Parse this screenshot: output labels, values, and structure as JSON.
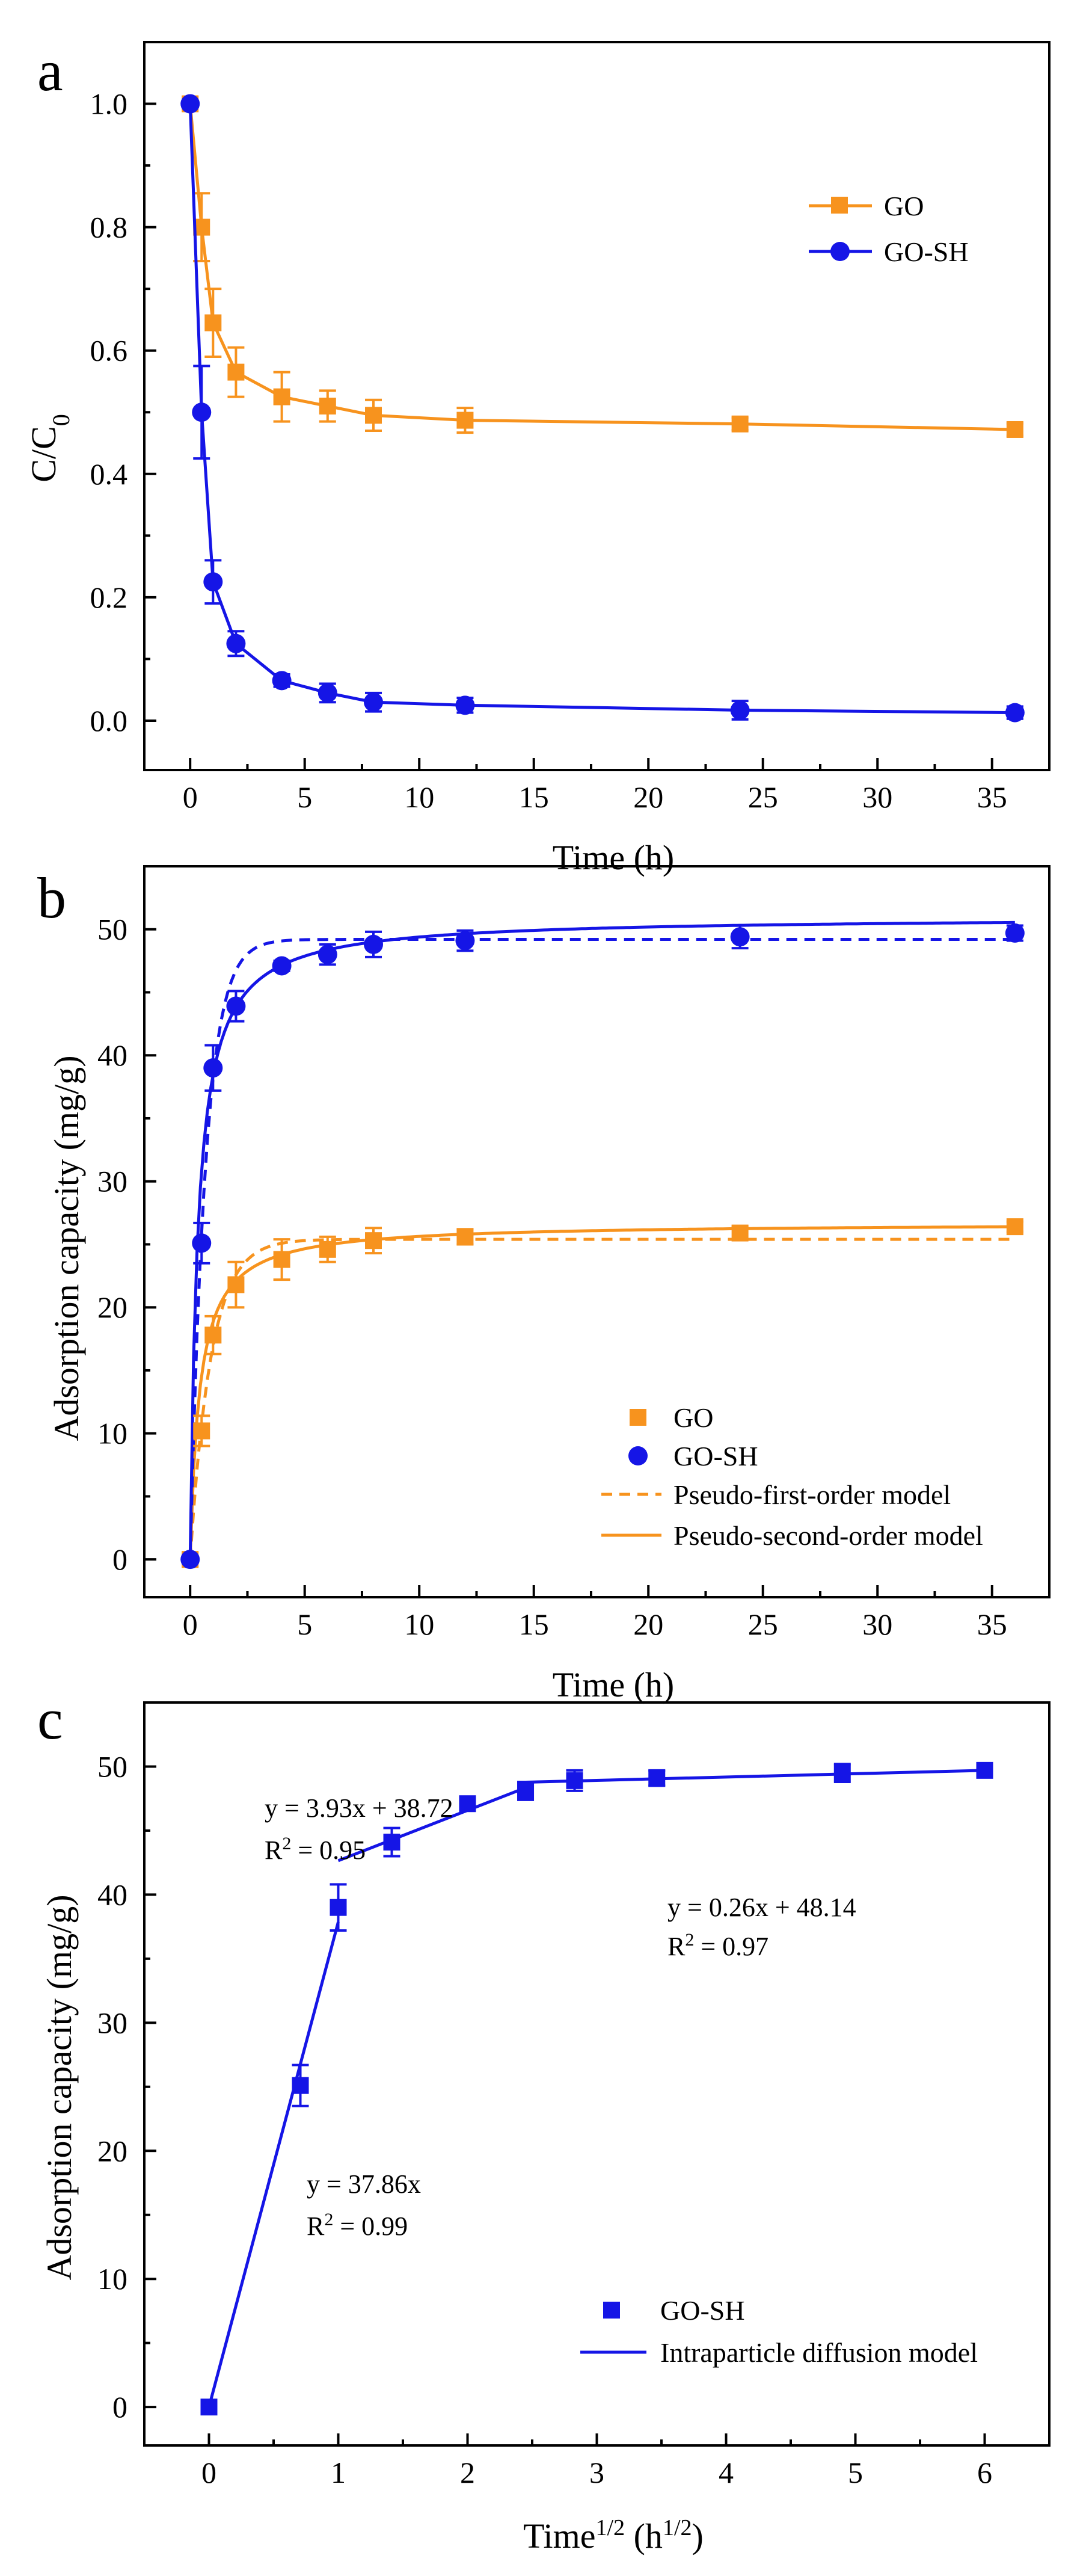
{
  "colors": {
    "orange": "#F7931E",
    "blue": "#1515E6",
    "axis": "#000000"
  },
  "chart_data": [
    {
      "panel": "a",
      "type": "line",
      "xlabel": "Time (h)",
      "ylabel_main": "C/C",
      "ylabel_sub": "0",
      "xlim": [
        -2,
        37.5
      ],
      "ylim": [
        -0.08,
        1.1
      ],
      "xticks": [
        0,
        5,
        10,
        15,
        20,
        25,
        30,
        35
      ],
      "yticks": [
        0.0,
        0.2,
        0.4,
        0.6,
        0.8,
        1.0
      ],
      "ytick_labels": [
        "0.0",
        "0.2",
        "0.4",
        "0.6",
        "0.8",
        "1.0"
      ],
      "legend_position": "top-right",
      "series": [
        {
          "name": "GO",
          "color": "orange",
          "marker": "square",
          "line": "solid",
          "x": [
            0,
            0.5,
            1,
            2,
            4,
            6,
            8,
            12,
            24,
            36
          ],
          "y": [
            1.0,
            0.8,
            0.645,
            0.565,
            0.525,
            0.51,
            0.495,
            0.487,
            0.481,
            0.472
          ],
          "err": [
            0,
            0.055,
            0.055,
            0.04,
            0.04,
            0.025,
            0.025,
            0.02,
            0.01,
            0.01
          ]
        },
        {
          "name": "GO-SH",
          "color": "blue",
          "marker": "circle",
          "line": "solid",
          "x": [
            0,
            0.5,
            1,
            2,
            4,
            6,
            8,
            12,
            24,
            36
          ],
          "y": [
            1.0,
            0.5,
            0.225,
            0.125,
            0.065,
            0.045,
            0.03,
            0.025,
            0.017,
            0.013
          ],
          "err": [
            0,
            0.075,
            0.035,
            0.02,
            0.01,
            0.015,
            0.015,
            0.012,
            0.015,
            0.01
          ]
        }
      ]
    },
    {
      "panel": "b",
      "type": "scatter",
      "xlabel": "Time (h)",
      "ylabel": "Adsorption capacity (mg/g)",
      "xlim": [
        -2,
        37.5
      ],
      "ylim": [
        -3,
        55
      ],
      "xticks": [
        0,
        5,
        10,
        15,
        20,
        25,
        30,
        35
      ],
      "yticks": [
        0,
        10,
        20,
        30,
        40,
        50
      ],
      "legend_position": "bottom-right",
      "series": [
        {
          "name": "GO",
          "color": "orange",
          "marker": "square",
          "x": [
            0,
            0.5,
            1,
            2,
            4,
            6,
            8,
            12,
            24,
            36
          ],
          "y": [
            0,
            10.2,
            17.8,
            21.8,
            23.8,
            24.6,
            25.3,
            25.6,
            25.9,
            26.4
          ],
          "err": [
            0,
            1.2,
            1.5,
            1.8,
            1.6,
            1.0,
            1.0,
            0.6,
            0.5,
            0.4
          ],
          "pfo": {
            "qe": 25.4,
            "k1": 1.1
          },
          "pso": {
            "qe": 26.7,
            "k2": 0.09
          }
        },
        {
          "name": "GO-SH",
          "color": "blue",
          "marker": "circle",
          "x": [
            0,
            0.5,
            1,
            2,
            4,
            6,
            8,
            12,
            24,
            36
          ],
          "y": [
            0,
            25.1,
            39.0,
            43.9,
            47.1,
            48.0,
            48.8,
            49.1,
            49.4,
            49.7
          ],
          "err": [
            0,
            1.6,
            1.8,
            1.2,
            0.4,
            0.8,
            1.0,
            0.8,
            0.9,
            0.6
          ],
          "pfo": {
            "qe": 49.2,
            "k1": 1.5
          },
          "pso": {
            "qe": 51.0,
            "k2": 0.06
          }
        }
      ],
      "legend": [
        {
          "label": "GO",
          "kind": "marker-square",
          "color": "orange"
        },
        {
          "label": "GO-SH",
          "kind": "marker-circle",
          "color": "blue"
        },
        {
          "label": "Pseudo-first-order model",
          "kind": "dashed",
          "color": "orange"
        },
        {
          "label": "Pseudo-second-order model",
          "kind": "solid",
          "color": "orange"
        }
      ]
    },
    {
      "panel": "c",
      "type": "scatter",
      "xlabel_main": "Time",
      "xlabel_sup": "1/2",
      "xlabel_unit_open": " (h",
      "xlabel_unit_sup": "1/2",
      "xlabel_unit_close": ")",
      "ylabel": "Adsorption capacity (mg/g)",
      "xlim": [
        -0.5,
        6.5
      ],
      "ylim": [
        -3,
        55
      ],
      "xticks": [
        0,
        1,
        2,
        3,
        4,
        5,
        6
      ],
      "yticks": [
        0,
        10,
        20,
        30,
        40,
        50
      ],
      "legend_position": "bottom-right",
      "series": [
        {
          "name": "GO-SH",
          "color": "blue",
          "marker": "square",
          "x": [
            0,
            0.707,
            1.0,
            1.414,
            2.0,
            2.449,
            2.828,
            3.464,
            4.899,
            6.0
          ],
          "y": [
            0,
            25.1,
            39.0,
            44.1,
            47.1,
            48.1,
            48.9,
            49.1,
            49.5,
            49.7
          ],
          "err": [
            0,
            1.6,
            1.8,
            1.1,
            0.4,
            0.7,
            0.8,
            0.6,
            0.7,
            0.4
          ]
        }
      ],
      "fits": [
        {
          "x": [
            0,
            1.0
          ],
          "slope": 37.86,
          "intercept": 0
        },
        {
          "x": [
            1.0,
            2.449
          ],
          "slope": 3.93,
          "intercept": 38.72
        },
        {
          "x": [
            2.449,
            6.0
          ],
          "slope": 0.26,
          "intercept": 48.14
        }
      ],
      "annotations": [
        {
          "eq": "y = 3.93x + 38.72",
          "r2": "R",
          "r2sup": "2",
          "r2val": " = 0.95"
        },
        {
          "eq": "y = 0.26x + 48.14",
          "r2": "R",
          "r2sup": "2",
          "r2val": " = 0.97"
        },
        {
          "eq": "y = 37.86x",
          "r2": "R",
          "r2sup": "2",
          "r2val": " = 0.99"
        }
      ],
      "legend": [
        {
          "label": "GO-SH",
          "kind": "marker-square",
          "color": "blue"
        },
        {
          "label": "Intraparticle diffusion model",
          "kind": "solid",
          "color": "blue"
        }
      ]
    }
  ]
}
